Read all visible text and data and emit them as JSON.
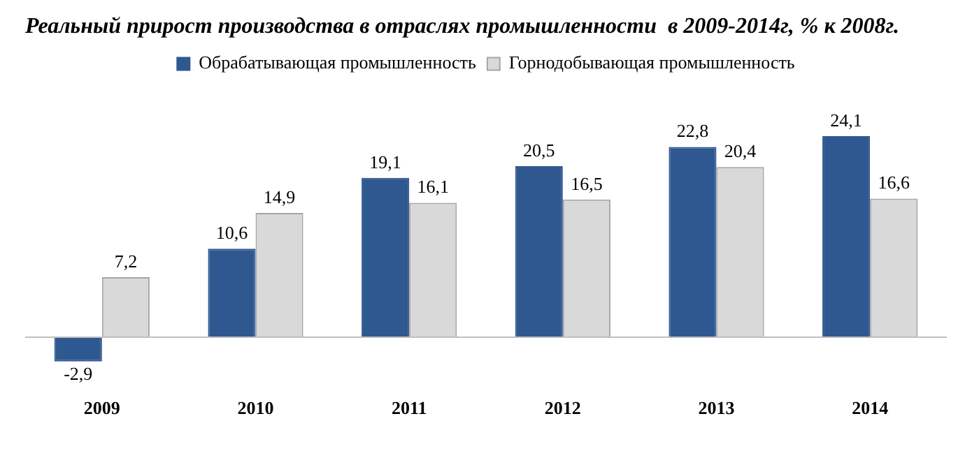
{
  "chart_data": {
    "type": "bar",
    "title": "Реальный прирост производства в отраслях промышленности  в 2009-2014г, % к 2008г.",
    "categories": [
      "2009",
      "2010",
      "2011",
      "2012",
      "2013",
      "2014"
    ],
    "legend": "top",
    "series": [
      {
        "name": "Обрабатывающая промышленность",
        "color": "#2f5891",
        "values": [
          -2.9,
          10.6,
          19.1,
          20.5,
          22.8,
          24.1
        ],
        "value_labels": [
          "-2,9",
          "10,6",
          "19,1",
          "20,5",
          "22,8",
          "24,1"
        ]
      },
      {
        "name": "Горнодобывающая промышленность",
        "color": "#d9d9d9",
        "values": [
          7.2,
          14.9,
          16.1,
          16.5,
          20.4,
          16.6
        ],
        "value_labels": [
          "7,2",
          "14,9",
          "16,1",
          "16,5",
          "20,4",
          "16,6"
        ]
      }
    ]
  }
}
